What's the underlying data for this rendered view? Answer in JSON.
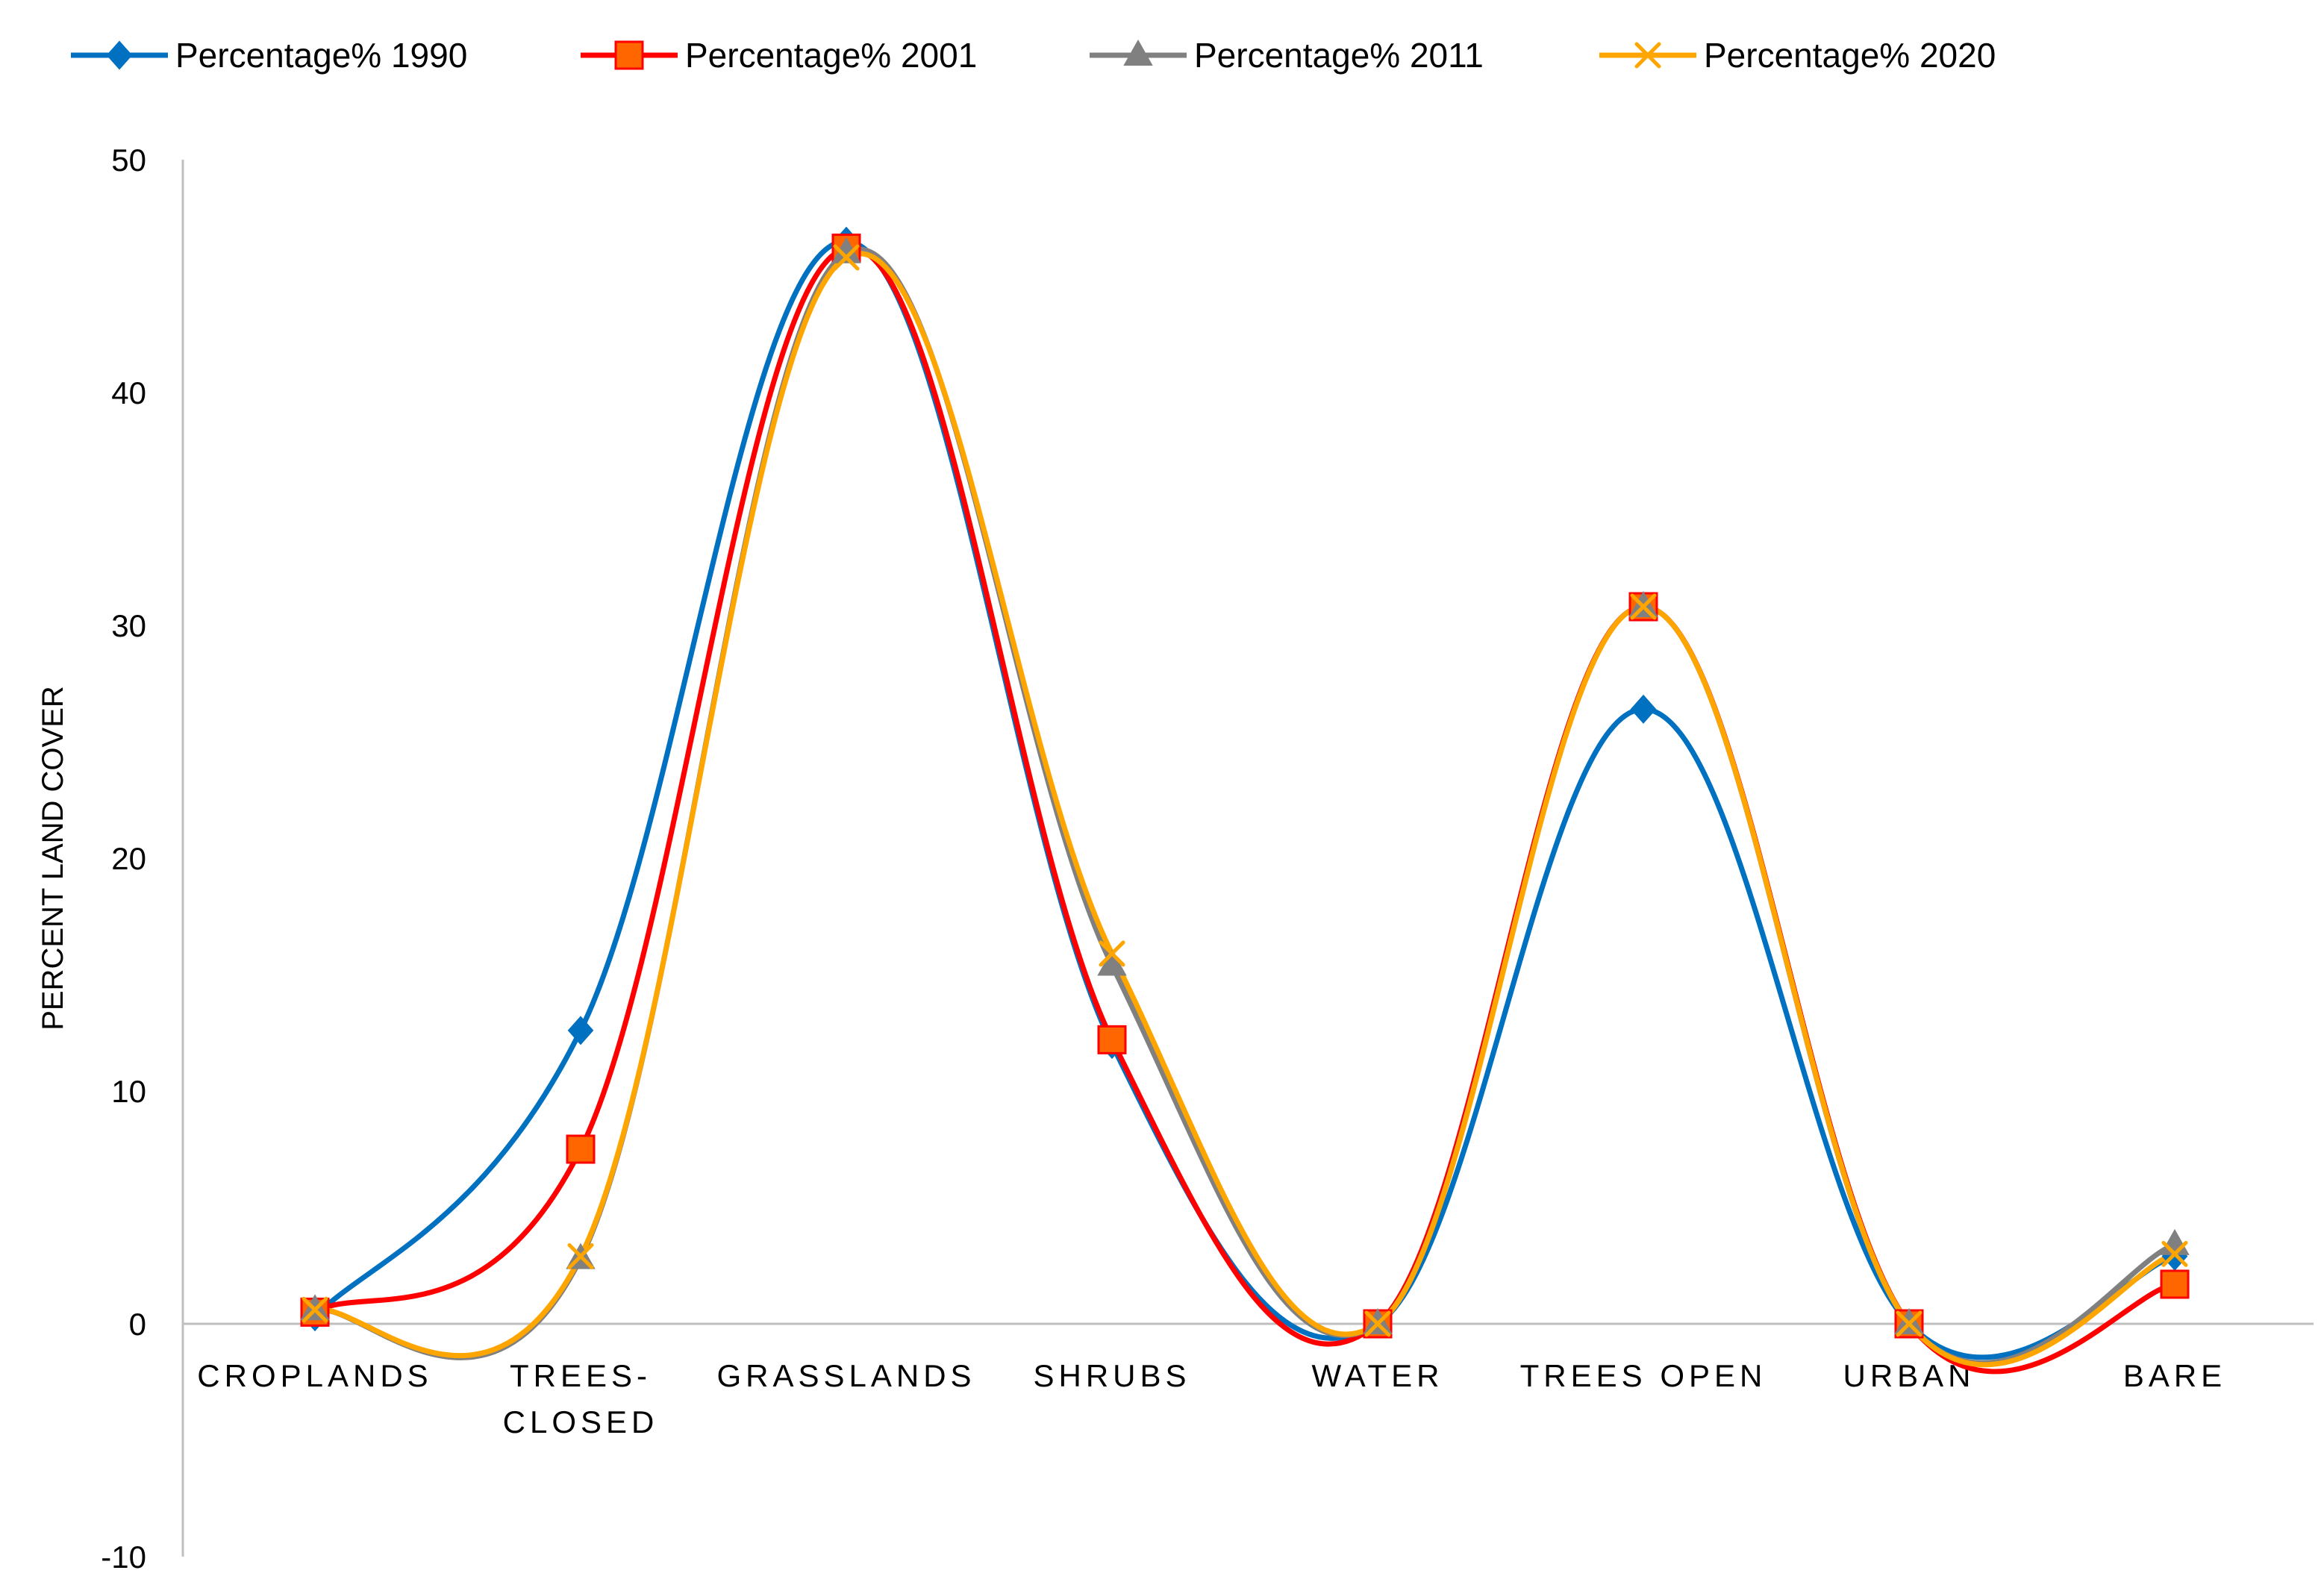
{
  "chart_data": {
    "type": "line",
    "smooth": true,
    "categories": [
      "CROPLANDS",
      "TREES-CLOSED",
      "GRASSLANDS",
      "SHRUBS",
      "WATER",
      "TREES OPEN",
      "URBAN",
      "BARE"
    ],
    "series": [
      {
        "name": "Percentage% 1990",
        "color": "#0070C0",
        "marker": "diamond",
        "values": [
          0.3,
          12.6,
          46.5,
          12.0,
          0.0,
          26.4,
          0.0,
          2.9
        ]
      },
      {
        "name": "Percentage% 2001",
        "color": "#FF0000",
        "marker": "square",
        "marker_fill": "#FF6600",
        "values": [
          0.5,
          7.5,
          46.2,
          12.2,
          0.0,
          30.8,
          0.0,
          1.7
        ]
      },
      {
        "name": "Percentage% 2011",
        "color": "#808080",
        "marker": "triangle",
        "values": [
          0.6,
          2.8,
          46.0,
          15.4,
          0.0,
          30.8,
          0.0,
          3.4
        ]
      },
      {
        "name": "Percentage% 2020",
        "color": "#FFA500",
        "marker": "x",
        "values": [
          0.6,
          2.9,
          45.8,
          15.9,
          0.0,
          30.8,
          0.0,
          3.0
        ]
      }
    ],
    "title": "",
    "xlabel": "",
    "ylabel": "PERCENT LAND COVER",
    "ylim": [
      -10,
      50
    ],
    "yticks": [
      "-10",
      "0",
      "10",
      "20",
      "30",
      "40",
      "50"
    ],
    "grid": false,
    "legend_position": "top"
  }
}
